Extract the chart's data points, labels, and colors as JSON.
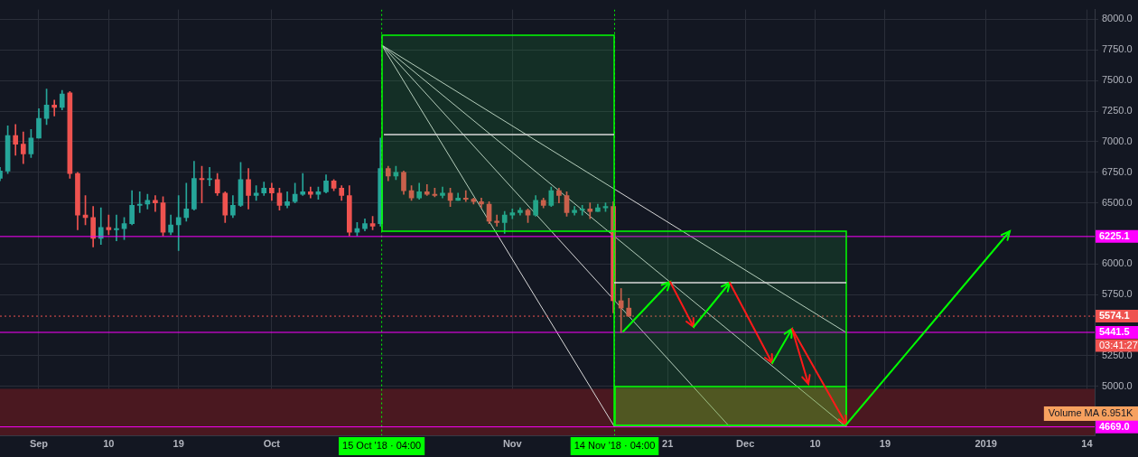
{
  "chart_data": {
    "type": "candlestick",
    "x": [
      "2018-08-27",
      "2018-08-28",
      "2018-08-29",
      "2018-08-30",
      "2018-08-31",
      "2018-09-01",
      "2018-09-02",
      "2018-09-03",
      "2018-09-04",
      "2018-09-05",
      "2018-09-06",
      "2018-09-07",
      "2018-09-08",
      "2018-09-09",
      "2018-09-10",
      "2018-09-11",
      "2018-09-12",
      "2018-09-13",
      "2018-09-14",
      "2018-09-15",
      "2018-09-16",
      "2018-09-17",
      "2018-09-18",
      "2018-09-19",
      "2018-09-20",
      "2018-09-21",
      "2018-09-22",
      "2018-09-23",
      "2018-09-24",
      "2018-09-25",
      "2018-09-26",
      "2018-09-27",
      "2018-09-28",
      "2018-09-29",
      "2018-09-30",
      "2018-10-01",
      "2018-10-02",
      "2018-10-03",
      "2018-10-04",
      "2018-10-05",
      "2018-10-06",
      "2018-10-07",
      "2018-10-08",
      "2018-10-09",
      "2018-10-10",
      "2018-10-11",
      "2018-10-12",
      "2018-10-13",
      "2018-10-14",
      "2018-10-15",
      "2018-10-16",
      "2018-10-17",
      "2018-10-18",
      "2018-10-19",
      "2018-10-20",
      "2018-10-21",
      "2018-10-22",
      "2018-10-23",
      "2018-10-24",
      "2018-10-25",
      "2018-10-26",
      "2018-10-27",
      "2018-10-28",
      "2018-10-29",
      "2018-10-30",
      "2018-10-31",
      "2018-11-01",
      "2018-11-02",
      "2018-11-03",
      "2018-11-04",
      "2018-11-05",
      "2018-11-06",
      "2018-11-07",
      "2018-11-08",
      "2018-11-09",
      "2018-11-10",
      "2018-11-11",
      "2018-11-12",
      "2018-11-13",
      "2018-11-14",
      "2018-11-15",
      "2018-11-16"
    ],
    "ohlc": [
      [
        6700,
        6790,
        6680,
        6760
      ],
      [
        6760,
        7130,
        6740,
        7050
      ],
      [
        7050,
        7140,
        6890,
        6980
      ],
      [
        6980,
        7080,
        6820,
        6900
      ],
      [
        6900,
        7100,
        6870,
        7030
      ],
      [
        7030,
        7270,
        7030,
        7190
      ],
      [
        7190,
        7430,
        7140,
        7300
      ],
      [
        7300,
        7340,
        7210,
        7280
      ],
      [
        7280,
        7420,
        7260,
        7390
      ],
      [
        7400,
        7410,
        6700,
        6740
      ],
      [
        6740,
        6750,
        6280,
        6400
      ],
      [
        6400,
        6560,
        6320,
        6380
      ],
      [
        6380,
        6470,
        6140,
        6210
      ],
      [
        6210,
        6460,
        6160,
        6300
      ],
      [
        6300,
        6400,
        6240,
        6280
      ],
      [
        6280,
        6400,
        6190,
        6290
      ],
      [
        6290,
        6380,
        6200,
        6330
      ],
      [
        6330,
        6600,
        6320,
        6480
      ],
      [
        6480,
        6590,
        6420,
        6490
      ],
      [
        6490,
        6570,
        6450,
        6520
      ],
      [
        6520,
        6560,
        6430,
        6500
      ],
      [
        6500,
        6550,
        6230,
        6260
      ],
      [
        6260,
        6400,
        6240,
        6320
      ],
      [
        6320,
        6560,
        6110,
        6380
      ],
      [
        6380,
        6660,
        6350,
        6450
      ],
      [
        6450,
        6840,
        6440,
        6700
      ],
      [
        6700,
        6800,
        6500,
        6690
      ],
      [
        6690,
        6790,
        6640,
        6690
      ],
      [
        6690,
        6740,
        6560,
        6580
      ],
      [
        6580,
        6590,
        6340,
        6400
      ],
      [
        6400,
        6560,
        6380,
        6480
      ],
      [
        6480,
        6830,
        6470,
        6690
      ],
      [
        6690,
        6780,
        6450,
        6560
      ],
      [
        6560,
        6640,
        6520,
        6580
      ],
      [
        6580,
        6670,
        6560,
        6620
      ],
      [
        6620,
        6660,
        6520,
        6580
      ],
      [
        6580,
        6620,
        6440,
        6480
      ],
      [
        6480,
        6590,
        6460,
        6510
      ],
      [
        6510,
        6660,
        6500,
        6570
      ],
      [
        6570,
        6740,
        6560,
        6590
      ],
      [
        6590,
        6630,
        6540,
        6570
      ],
      [
        6570,
        6630,
        6530,
        6590
      ],
      [
        6590,
        6730,
        6580,
        6680
      ],
      [
        6680,
        6690,
        6600,
        6620
      ],
      [
        6620,
        6640,
        6520,
        6560
      ],
      [
        6560,
        6640,
        6230,
        6260
      ],
      [
        6260,
        6340,
        6230,
        6290
      ],
      [
        6290,
        6370,
        6270,
        6330
      ],
      [
        6330,
        6390,
        6280,
        6310
      ],
      [
        6330,
        7030,
        6310,
        6780
      ],
      [
        6780,
        6800,
        6680,
        6720
      ],
      [
        6720,
        6800,
        6690,
        6750
      ],
      [
        6750,
        6760,
        6570,
        6600
      ],
      [
        6600,
        6640,
        6520,
        6540
      ],
      [
        6540,
        6660,
        6530,
        6590
      ],
      [
        6590,
        6650,
        6560,
        6570
      ],
      [
        6570,
        6620,
        6550,
        6560
      ],
      [
        6560,
        6630,
        6540,
        6580
      ],
      [
        6580,
        6620,
        6470,
        6520
      ],
      [
        6520,
        6580,
        6520,
        6540
      ],
      [
        6540,
        6600,
        6510,
        6530
      ],
      [
        6530,
        6540,
        6490,
        6510
      ],
      [
        6510,
        6540,
        6460,
        6490
      ],
      [
        6490,
        6510,
        6330,
        6350
      ],
      [
        6350,
        6400,
        6310,
        6340
      ],
      [
        6340,
        6430,
        6250,
        6400
      ],
      [
        6400,
        6450,
        6370,
        6420
      ],
      [
        6420,
        6460,
        6400,
        6440
      ],
      [
        6440,
        6450,
        6340,
        6400
      ],
      [
        6400,
        6560,
        6390,
        6520
      ],
      [
        6520,
        6540,
        6460,
        6480
      ],
      [
        6480,
        6630,
        6470,
        6600
      ],
      [
        6600,
        6620,
        6500,
        6560
      ],
      [
        6560,
        6590,
        6390,
        6420
      ],
      [
        6420,
        6470,
        6400,
        6440
      ],
      [
        6440,
        6480,
        6400,
        6450
      ],
      [
        6450,
        6500,
        6370,
        6430
      ],
      [
        6430,
        6490,
        6430,
        6460
      ],
      [
        6460,
        6500,
        6430,
        6470
      ],
      [
        6470,
        6510,
        5600,
        5700
      ],
      [
        5700,
        5800,
        5440,
        5640
      ],
      [
        5640,
        5720,
        5570,
        5574.1
      ]
    ],
    "xlim": [
      "2018-08-27",
      "2019-01-15"
    ],
    "xticks": [
      {
        "value": "2018-09-01",
        "label": "Sep"
      },
      {
        "value": "2018-09-10",
        "label": "10"
      },
      {
        "value": "2018-09-19",
        "label": "19"
      },
      {
        "value": "2018-10-01",
        "label": "Oct"
      },
      {
        "value": "2018-11-01",
        "label": "Nov"
      },
      {
        "value": "2018-11-21",
        "label": "21"
      },
      {
        "value": "2018-12-01",
        "label": "Dec"
      },
      {
        "value": "2018-12-10",
        "label": "10"
      },
      {
        "value": "2018-12-19",
        "label": "19"
      },
      {
        "value": "2019-01-01",
        "label": "2019"
      },
      {
        "value": "2019-01-14",
        "label": "14"
      }
    ],
    "ylim": [
      4600,
      8080
    ],
    "yticks": [
      {
        "value": 5000,
        "label": "5000.0"
      },
      {
        "value": 5250,
        "label": "5250.0"
      },
      {
        "value": 5750,
        "label": "5750.0"
      },
      {
        "value": 6000,
        "label": "6000.0"
      },
      {
        "value": 6500,
        "label": "6500.0"
      },
      {
        "value": 6750,
        "label": "6750.0"
      },
      {
        "value": 7000,
        "label": "7000.0"
      },
      {
        "value": 7250,
        "label": "7250.0"
      },
      {
        "value": 7500,
        "label": "7500.0"
      },
      {
        "value": 7750,
        "label": "7750.0"
      },
      {
        "value": 8000,
        "label": "8000.0"
      }
    ],
    "grid": true,
    "series": [
      {
        "type": "line",
        "color": "#d8d8d8",
        "x": [
          "2018-10-15T04:00",
          "2018-11-14T04:00"
        ],
        "values": [
          7790,
          4669
        ]
      },
      {
        "type": "line",
        "color": "#d8d8d8",
        "x": [
          "2018-10-15T04:00",
          "2018-11-29"
        ],
        "values": [
          7790,
          4669
        ]
      },
      {
        "type": "line",
        "color": "#d8d8d8",
        "x": [
          "2018-10-15T04:00",
          "2018-12-14"
        ],
        "values": [
          7790,
          4669
        ]
      },
      {
        "type": "line",
        "color": "#d8d8d8",
        "x": [
          "2018-10-15T04:00",
          "2018-12-14"
        ],
        "values": [
          7790,
          5440
        ]
      }
    ],
    "ref_lines": [
      {
        "axis": "x",
        "value": "2018-10-15T04:00",
        "label": "15 Oct '18 · 04:00",
        "color": "#00ff00",
        "line_style": "dotted"
      },
      {
        "axis": "x",
        "value": "2018-11-14T04:00",
        "label": "14 Nov '18 · 04:00",
        "color": "#00ff00",
        "line_style": "dotted"
      },
      {
        "axis": "y",
        "value": 6225.1,
        "label": "6225.1",
        "color": "#ff00ff",
        "line_style": "solid"
      },
      {
        "axis": "y",
        "value": 5574.1,
        "label": "5574.1",
        "color": "#ef5350",
        "line_style": "dotted"
      },
      {
        "axis": "y",
        "value": 5441.5,
        "label": "5441.5",
        "color": "#ff00ff",
        "line_style": "solid"
      },
      {
        "axis": "y",
        "value": 4669,
        "label": "4669.0",
        "color": "#ff00ff",
        "line_style": "solid"
      }
    ],
    "bands": [
      {
        "axis": "y",
        "from": 4600,
        "to": 4980,
        "color": "#4a1820"
      }
    ],
    "annotations": [
      "03:41:27",
      "Volume MA 6.951K"
    ]
  }
}
